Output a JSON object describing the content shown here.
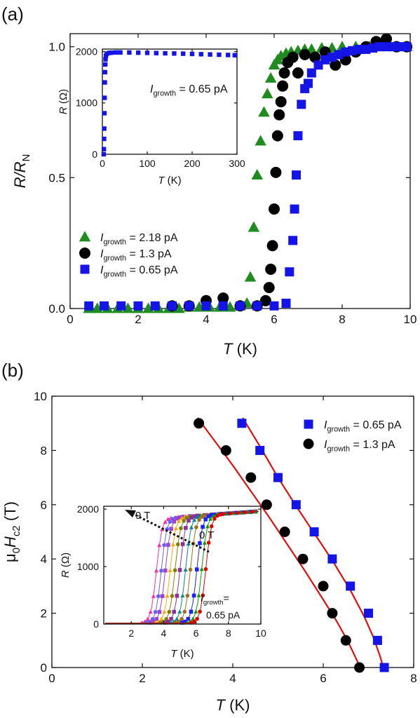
{
  "chart_data": [
    {
      "panel": "(a)",
      "type": "scatter",
      "xlabel_italic": "T",
      "xlabel_unit": " (K)",
      "ylabel_italic": "R/R",
      "ylabel_sub": "N",
      "xlim": [
        0,
        10
      ],
      "ylim": [
        0,
        1.05
      ],
      "xticks": [
        0,
        2,
        4,
        6,
        8,
        10
      ],
      "yticks": [
        0.0,
        0.5,
        1.0
      ],
      "ytick_labels": [
        "0.0",
        "0.5",
        "1.0"
      ],
      "legend_position": "lower-left",
      "series": [
        {
          "name_italic": "I",
          "name_sub": "growth",
          "name_rest": "= 2.18 pA",
          "marker": "triangle",
          "color": "#1e8c1e",
          "x": [
            0.55,
            0.8,
            1.1,
            1.4,
            1.7,
            2.0,
            2.3,
            2.6,
            2.9,
            3.2,
            3.5,
            3.8,
            4.1,
            4.4,
            4.7,
            5.0,
            5.2,
            5.3,
            5.4,
            5.5,
            5.6,
            5.7,
            5.8,
            5.9,
            6.0,
            6.1,
            6.2,
            6.35,
            6.5,
            6.7,
            6.9,
            7.1,
            7.4,
            7.7,
            8.0,
            8.4,
            8.8,
            9.2,
            9.6,
            9.9
          ],
          "y": [
            0.0,
            0.0,
            0.0,
            0.0,
            0.0,
            0.0,
            0.0,
            0.0,
            0.0,
            0.0,
            0.005,
            0.005,
            0.005,
            0.005,
            0.005,
            0.01,
            0.02,
            0.12,
            0.31,
            0.51,
            0.64,
            0.75,
            0.82,
            0.88,
            0.93,
            0.95,
            0.965,
            0.975,
            0.98,
            0.985,
            0.99,
            0.99,
            0.995,
            0.995,
            1.0,
            1.0,
            1.0,
            1.0,
            1.0,
            1.0
          ]
        },
        {
          "name_italic": "I",
          "name_sub": "growth",
          "name_rest": "= 1.3 pA",
          "marker": "circle",
          "color": "#000000",
          "x": [
            3.0,
            3.5,
            4.0,
            4.5,
            5.0,
            5.5,
            5.75,
            5.85,
            5.9,
            5.95,
            6.0,
            6.05,
            6.1,
            6.15,
            6.2,
            6.25,
            6.3,
            6.4,
            6.55,
            6.7,
            6.9,
            7.2,
            7.5,
            7.8,
            8.1,
            8.4,
            8.7,
            9.0,
            9.3,
            9.6,
            9.9
          ],
          "y": [
            0.01,
            0.01,
            0.03,
            0.04,
            0.01,
            0.01,
            0.03,
            0.08,
            0.15,
            0.24,
            0.38,
            0.52,
            0.66,
            0.74,
            0.79,
            0.85,
            0.9,
            0.94,
            0.96,
            0.9,
            0.97,
            0.96,
            0.98,
            0.93,
            0.95,
            0.98,
            1.0,
            1.02,
            1.03,
            1.0,
            1.0
          ]
        },
        {
          "name_italic": "I",
          "name_sub": "growth",
          "name_rest": "= 0.65 pA",
          "marker": "square",
          "color": "#1414e6",
          "x": [
            0.55,
            1.0,
            1.5,
            2.0,
            2.5,
            3.0,
            3.5,
            4.0,
            4.5,
            5.0,
            5.5,
            6.0,
            6.35,
            6.45,
            6.55,
            6.6,
            6.65,
            6.7,
            6.8,
            6.9,
            7.0,
            7.1,
            7.3,
            7.5,
            7.7,
            7.9,
            8.1,
            8.3,
            8.5,
            8.7,
            8.9,
            9.1,
            9.3,
            9.5,
            9.7,
            9.9
          ],
          "y": [
            0.01,
            0.01,
            0.01,
            0.01,
            0.01,
            0.01,
            0.01,
            0.01,
            0.01,
            0.01,
            0.01,
            0.01,
            0.02,
            0.14,
            0.26,
            0.38,
            0.51,
            0.66,
            0.78,
            0.84,
            0.86,
            0.9,
            0.93,
            0.95,
            0.96,
            0.97,
            0.98,
            0.985,
            0.99,
            0.99,
            0.995,
            1.0,
            1.0,
            1.0,
            1.0,
            1.0
          ]
        }
      ],
      "inset": {
        "type": "scatter",
        "xlabel_italic": "T",
        "xlabel_unit": " (K)",
        "ylabel_italic": "R",
        "ylabel_unit": " (Ω)",
        "xlim": [
          0,
          300
        ],
        "ylim": [
          0,
          2050
        ],
        "xticks": [
          0,
          100,
          200,
          300
        ],
        "yticks": [
          0,
          1000,
          2000
        ],
        "annotation_italic": "I",
        "annotation_sub": "growth",
        "annotation_rest": "= 0.65 pA",
        "color": "#1414e6",
        "x": [
          3,
          3.4,
          3.8,
          4.2,
          4.6,
          5,
          5.5,
          6,
          6.5,
          7,
          8,
          10,
          15,
          20,
          30,
          40,
          60,
          80,
          100,
          120,
          140,
          160,
          180,
          200,
          220,
          240,
          260,
          280,
          295
        ],
        "y": [
          0,
          100,
          300,
          500,
          800,
          1100,
          1400,
          1600,
          1750,
          1850,
          1920,
          1960,
          1975,
          1980,
          1985,
          1985,
          1983,
          1980,
          1976,
          1972,
          1968,
          1964,
          1960,
          1955,
          1950,
          1945,
          1940,
          1935,
          1930
        ]
      }
    },
    {
      "panel": "(b)",
      "type": "scatter",
      "xlabel_italic": "T",
      "xlabel_unit": " (K)",
      "ylabel_prefix": "μ",
      "ylabel_prefix_sub": "0",
      "ylabel_italic": "H",
      "ylabel_sub": "c2",
      "ylabel_unit": " (T)",
      "xlim": [
        0,
        8
      ],
      "ylim": [
        0,
        10
      ],
      "xticks": [
        0,
        2,
        4,
        6,
        8
      ],
      "yticks": [
        0,
        2,
        4,
        6,
        8,
        10
      ],
      "legend_position": "top-right",
      "fit_color": "#e01010",
      "series": [
        {
          "name_italic": "I",
          "name_sub": "growth",
          "name_rest": "= 0.65 pA",
          "marker": "square",
          "color": "#1414e6",
          "x": [
            4.2,
            4.6,
            5.0,
            5.4,
            5.8,
            6.2,
            6.6,
            7.0,
            7.2,
            7.35
          ],
          "y": [
            9,
            8,
            7,
            6,
            5,
            4,
            3,
            2,
            1,
            0
          ],
          "fit": {
            "x": [
              4.22,
              4.6,
              5.0,
              5.4,
              5.8,
              6.2,
              6.6,
              6.9,
              7.1,
              7.25,
              7.33
            ],
            "y": [
              9.2,
              8.15,
              7.0,
              5.95,
              4.95,
              3.95,
              2.85,
              1.9,
              1.15,
              0.45,
              0.0
            ]
          }
        },
        {
          "name_italic": "I",
          "name_sub": "growth",
          "name_rest": "= 1.3 pA",
          "marker": "circle",
          "color": "#000000",
          "x": [
            3.25,
            3.85,
            4.4,
            4.75,
            5.15,
            5.55,
            6.0,
            6.2,
            6.5,
            6.8
          ],
          "y": [
            9,
            8,
            7,
            6,
            5,
            4,
            3,
            2,
            1,
            0
          ],
          "fit": {
            "x": [
              3.22,
              3.6,
              4.0,
              4.4,
              4.8,
              5.2,
              5.6,
              6.0,
              6.3,
              6.55,
              6.72,
              6.82
            ],
            "y": [
              9.2,
              8.35,
              7.45,
              6.5,
              5.55,
              4.55,
              3.55,
              2.5,
              1.7,
              0.95,
              0.35,
              0.0
            ]
          }
        }
      ],
      "inset": {
        "type": "line",
        "xlabel_italic": "T",
        "xlabel_unit": " (K)",
        "ylabel_italic": "R",
        "ylabel_unit": " (Ω)",
        "xlim": [
          0.3,
          10
        ],
        "ylim": [
          0,
          2050
        ],
        "xticks": [
          2,
          4,
          6,
          8,
          10
        ],
        "yticks": [
          0,
          1000,
          2000
        ],
        "label_high": "9 T",
        "label_low": "0 T",
        "annotation_italic": "I",
        "annotation_sub": "growth",
        "annotation_rest": "=",
        "annotation_line2": "0.65 pA",
        "field_curves": [
          {
            "field": 9,
            "tc": 3.55,
            "color": "#ff2aa0"
          },
          {
            "field": 8,
            "tc": 3.85,
            "color": "#6060ff"
          },
          {
            "field": 7,
            "tc": 4.1,
            "color": "#a040d0"
          },
          {
            "field": 6,
            "tc": 4.4,
            "color": "#ffaa00"
          },
          {
            "field": 5,
            "tc": 4.7,
            "color": "#808000"
          },
          {
            "field": 4,
            "tc": 5.0,
            "color": "#8b2fa0"
          },
          {
            "field": 3,
            "tc": 5.35,
            "color": "#008b8b"
          },
          {
            "field": 2,
            "tc": 5.65,
            "color": "#a07020"
          },
          {
            "field": 1,
            "tc": 6.05,
            "color": "#2020ff"
          },
          {
            "field": 0.5,
            "tc": 6.35,
            "color": "#00a000"
          },
          {
            "field": 0,
            "tc": 6.6,
            "color": "#e00000"
          }
        ]
      }
    }
  ]
}
